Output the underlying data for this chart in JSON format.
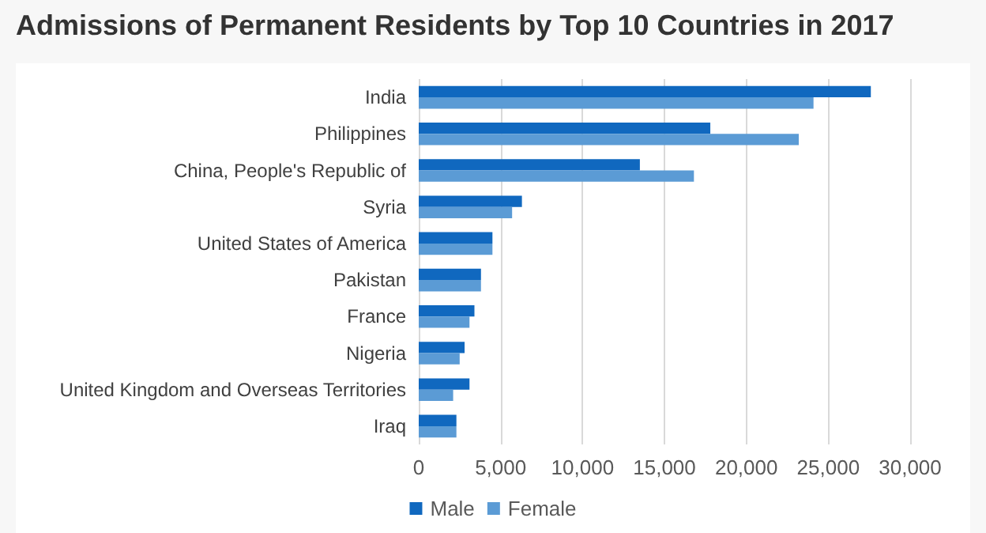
{
  "chart_data": {
    "type": "bar",
    "orientation": "horizontal",
    "title": "Admissions of Permanent Residents by Top 10 Countries in 2017",
    "categories": [
      "India",
      "Philippines",
      "China, People's Republic of",
      "Syria",
      "United States of America",
      "Pakistan",
      "France",
      "Nigeria",
      "United Kingdom and Overseas Territories",
      "Iraq"
    ],
    "series": [
      {
        "name": "Male",
        "color": "#1068bf",
        "values": [
          27600,
          17800,
          13500,
          6300,
          4500,
          3800,
          3400,
          2800,
          3100,
          2300
        ]
      },
      {
        "name": "Female",
        "color": "#5b9bd5",
        "values": [
          24100,
          23200,
          16800,
          5700,
          4500,
          3800,
          3100,
          2500,
          2100,
          2300
        ]
      }
    ],
    "xlim": [
      0,
      30000
    ],
    "xticks": [
      0,
      {
        "value": 5000,
        "label": "5,000"
      },
      {
        "value": 10000,
        "label": "10,000"
      },
      {
        "value": 15000,
        "label": "15,000"
      },
      {
        "value": 20000,
        "label": "20,000"
      },
      {
        "value": 25000,
        "label": "25,000"
      },
      {
        "value": 30000,
        "label": "30,000"
      }
    ],
    "grid": "x",
    "legend": "bottom"
  }
}
